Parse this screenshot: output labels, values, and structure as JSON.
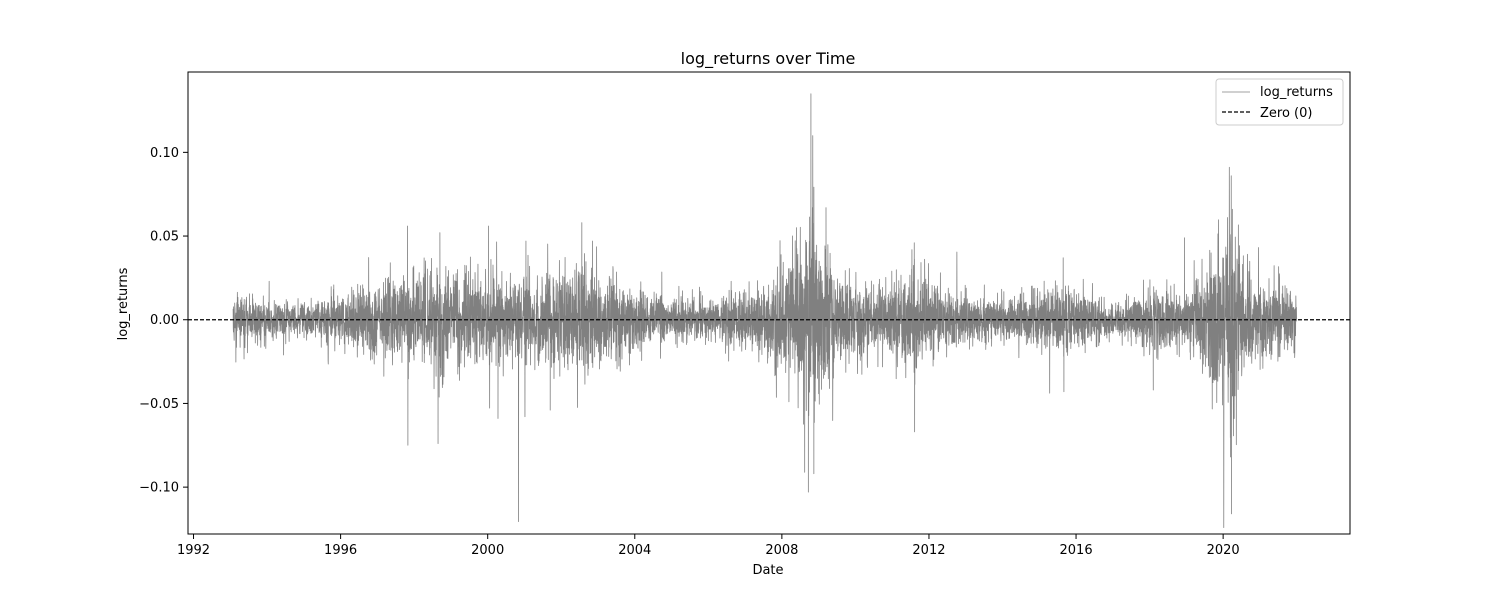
{
  "chart_data": {
    "type": "line",
    "title": "log_returns over Time",
    "xlabel": "Date",
    "ylabel": "log_returns",
    "x_range": [
      "1991-11-01",
      "2023-06-15"
    ],
    "xlim_years": [
      1991.85,
      2023.45
    ],
    "ylim": [
      -0.128,
      0.148
    ],
    "x_ticks": [
      "1992",
      "1996",
      "2000",
      "2004",
      "2008",
      "2012",
      "2016",
      "2020"
    ],
    "y_ticks": [
      {
        "value": 0.1,
        "label": "0.10"
      },
      {
        "value": 0.05,
        "label": "0.05"
      },
      {
        "value": 0.0,
        "label": "0.00"
      },
      {
        "value": -0.05,
        "label": "−0.05"
      },
      {
        "value": -0.1,
        "label": "−0.10"
      }
    ],
    "grid": false,
    "legend_position": "top-right",
    "series": [
      {
        "name": "log_returns",
        "color": "#808080",
        "style": "solid",
        "x_start": "1993-01-29",
        "x_end": "2021-12-31",
        "volatility_profile": [
          {
            "year": 1993.1,
            "level": 0.007
          },
          {
            "year": 1995.0,
            "level": 0.005
          },
          {
            "year": 1996.3,
            "level": 0.008
          },
          {
            "year": 1997.5,
            "level": 0.012
          },
          {
            "year": 1998.8,
            "level": 0.015
          },
          {
            "year": 2000.0,
            "level": 0.014
          },
          {
            "year": 2001.5,
            "level": 0.014
          },
          {
            "year": 2002.7,
            "level": 0.017
          },
          {
            "year": 2003.6,
            "level": 0.01
          },
          {
            "year": 2004.5,
            "level": 0.007
          },
          {
            "year": 2006.0,
            "level": 0.006
          },
          {
            "year": 2007.5,
            "level": 0.01
          },
          {
            "year": 2008.8,
            "level": 0.03
          },
          {
            "year": 2009.5,
            "level": 0.015
          },
          {
            "year": 2010.5,
            "level": 0.009
          },
          {
            "year": 2011.7,
            "level": 0.016
          },
          {
            "year": 2012.5,
            "level": 0.008
          },
          {
            "year": 2014.0,
            "level": 0.006
          },
          {
            "year": 2015.7,
            "level": 0.01
          },
          {
            "year": 2017.0,
            "level": 0.004
          },
          {
            "year": 2018.2,
            "level": 0.01
          },
          {
            "year": 2019.0,
            "level": 0.008
          },
          {
            "year": 2020.2,
            "level": 0.03
          },
          {
            "year": 2020.7,
            "level": 0.012
          },
          {
            "year": 2022.0,
            "level": 0.009
          }
        ],
        "spikes": [
          {
            "x": 1997.82,
            "y": 0.056
          },
          {
            "x": 1997.83,
            "y": -0.075
          },
          {
            "x": 1998.65,
            "y": -0.074
          },
          {
            "x": 1998.7,
            "y": 0.052
          },
          {
            "x": 2000.02,
            "y": 0.056
          },
          {
            "x": 2000.28,
            "y": -0.059
          },
          {
            "x": 2001.04,
            "y": 0.047
          },
          {
            "x": 2001.7,
            "y": -0.054
          },
          {
            "x": 2002.56,
            "y": 0.058
          },
          {
            "x": 2002.85,
            "y": 0.047
          },
          {
            "x": 2008.72,
            "y": -0.103
          },
          {
            "x": 2008.79,
            "y": 0.135
          },
          {
            "x": 2008.84,
            "y": 0.11
          },
          {
            "x": 2008.87,
            "y": -0.092
          },
          {
            "x": 2009.2,
            "y": 0.067
          },
          {
            "x": 2011.6,
            "y": 0.046
          },
          {
            "x": 2011.61,
            "y": -0.067
          },
          {
            "x": 2015.65,
            "y": 0.037
          },
          {
            "x": 2015.67,
            "y": -0.043
          },
          {
            "x": 2018.1,
            "y": -0.042
          },
          {
            "x": 2018.95,
            "y": 0.049
          },
          {
            "x": 2020.2,
            "y": -0.082
          },
          {
            "x": 2020.22,
            "y": 0.086
          },
          {
            "x": 2020.23,
            "y": -0.116
          },
          {
            "x": 2020.25,
            "y": 0.066
          },
          {
            "x": 2020.3,
            "y": -0.059
          }
        ]
      },
      {
        "name": "Zero (0)",
        "color": "#000000",
        "style": "dashed",
        "y": 0.0
      }
    ]
  }
}
